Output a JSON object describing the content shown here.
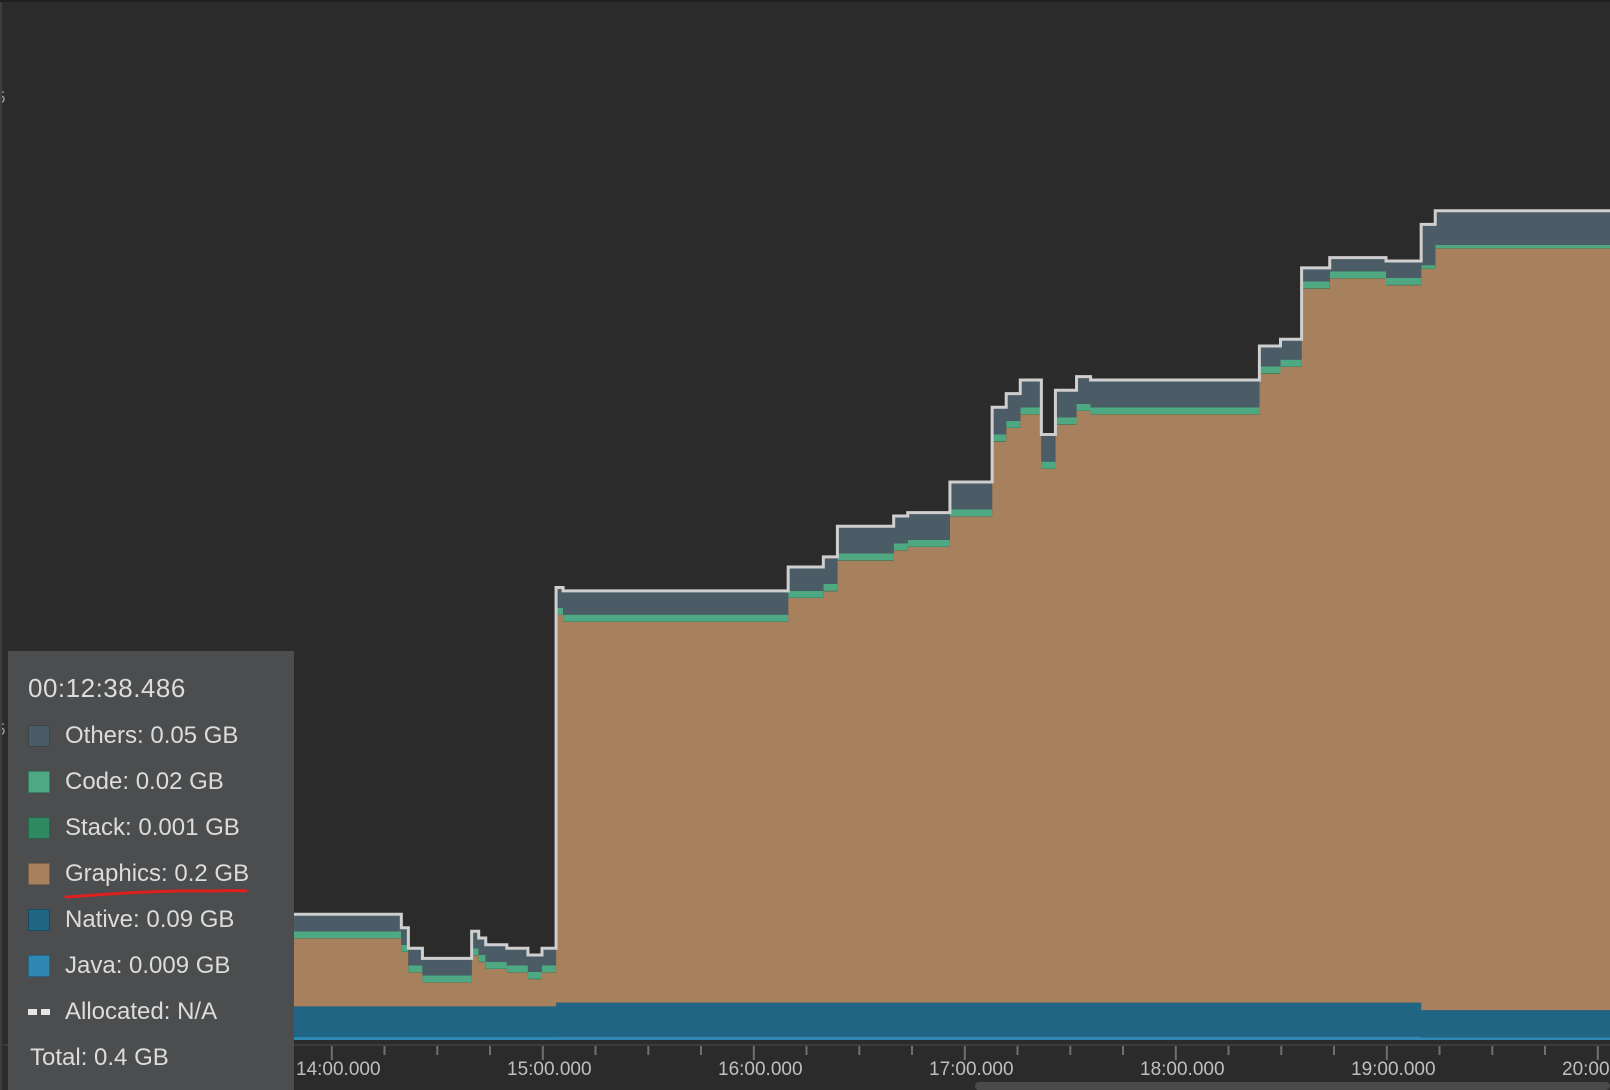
{
  "colors": {
    "background": "#2b2b2b",
    "others": "#4c5c66",
    "code": "#4ea882",
    "stack": "#2f8a62",
    "graphics": "#a7815d",
    "native": "#216584",
    "java": "#2f87b3",
    "total_line": "#cfcfcf",
    "annotation": "#e02020"
  },
  "tooltip": {
    "time": "00:12:38.486",
    "items": [
      {
        "label": "Others: 0.05 GB",
        "swatch": "others"
      },
      {
        "label": "Code: 0.02 GB",
        "swatch": "code"
      },
      {
        "label": "Stack: 0.001 GB",
        "swatch": "stack"
      },
      {
        "label": "Graphics: 0.2 GB",
        "swatch": "graphics"
      },
      {
        "label": "Native: 0.09 GB",
        "swatch": "native"
      },
      {
        "label": "Java: 0.009 GB",
        "swatch": "java"
      },
      {
        "label": "Allocated: N/A",
        "swatch": "dashed"
      }
    ],
    "total": "Total: 0.4 GB"
  },
  "chart_data": {
    "type": "area",
    "stacked": true,
    "x_tick_labels": [
      "14:00.000",
      "15:00.000",
      "16:00.000",
      "17:00.000",
      "18:00.000",
      "19:00.000",
      "20:00"
    ],
    "y_tick_labels": [
      "5",
      "5"
    ],
    "grid": false,
    "legend_placement": "bottom-left (hover tooltip)",
    "x": [
      "13:12",
      "13:20",
      "13:30",
      "13:40",
      "14:00",
      "14:20",
      "14:22",
      "14:26",
      "14:36",
      "14:40",
      "14:42",
      "14:44",
      "14:50",
      "14:56",
      "15:00",
      "15:04",
      "15:06",
      "15:10",
      "15:20",
      "15:40",
      "16:04",
      "16:10",
      "16:20",
      "16:24",
      "16:40",
      "16:44",
      "16:56",
      "17:08",
      "17:12",
      "17:16",
      "17:22",
      "17:26",
      "17:32",
      "17:36",
      "17:48",
      "18:00",
      "18:24",
      "18:30",
      "18:36",
      "18:44",
      "19:00",
      "19:10",
      "19:14",
      "19:30",
      "20:00"
    ],
    "series": [
      {
        "name": "Java",
        "values": [
          0.009,
          0.009,
          0.009,
          0.009,
          0.009,
          0.009,
          0.009,
          0.009,
          0.009,
          0.009,
          0.009,
          0.009,
          0.009,
          0.009,
          0.009,
          0.01,
          0.01,
          0.01,
          0.01,
          0.01,
          0.01,
          0.01,
          0.01,
          0.01,
          0.01,
          0.01,
          0.01,
          0.01,
          0.01,
          0.01,
          0.01,
          0.01,
          0.01,
          0.01,
          0.01,
          0.01,
          0.01,
          0.01,
          0.01,
          0.01,
          0.01,
          0.008,
          0.008,
          0.008,
          0.008
        ]
      },
      {
        "name": "Native",
        "values": [
          0.09,
          0.09,
          0.09,
          0.09,
          0.09,
          0.09,
          0.09,
          0.09,
          0.09,
          0.09,
          0.09,
          0.09,
          0.09,
          0.09,
          0.09,
          0.1,
          0.1,
          0.1,
          0.1,
          0.1,
          0.1,
          0.1,
          0.1,
          0.1,
          0.1,
          0.1,
          0.1,
          0.1,
          0.1,
          0.1,
          0.1,
          0.1,
          0.1,
          0.1,
          0.1,
          0.1,
          0.1,
          0.1,
          0.1,
          0.1,
          0.1,
          0.08,
          0.08,
          0.08,
          0.08
        ]
      },
      {
        "name": "Graphics",
        "values": [
          0.2,
          0.2,
          0.2,
          0.2,
          0.2,
          0.16,
          0.1,
          0.07,
          0.07,
          0.15,
          0.13,
          0.11,
          0.1,
          0.08,
          0.1,
          1.14,
          1.12,
          1.12,
          1.12,
          1.12,
          1.12,
          1.19,
          1.21,
          1.3,
          1.33,
          1.34,
          1.43,
          1.65,
          1.69,
          1.73,
          1.57,
          1.7,
          1.74,
          1.73,
          1.73,
          1.73,
          1.85,
          1.87,
          2.1,
          2.13,
          2.11,
          2.18,
          2.24,
          2.24,
          2.24
        ]
      },
      {
        "name": "Stack",
        "values": [
          0.001,
          0.001,
          0.001,
          0.001,
          0.001,
          0.001,
          0.001,
          0.001,
          0.001,
          0.001,
          0.001,
          0.001,
          0.001,
          0.001,
          0.001,
          0.001,
          0.001,
          0.001,
          0.001,
          0.001,
          0.001,
          0.001,
          0.001,
          0.001,
          0.001,
          0.001,
          0.001,
          0.001,
          0.001,
          0.001,
          0.001,
          0.001,
          0.001,
          0.001,
          0.001,
          0.001,
          0.001,
          0.001,
          0.001,
          0.001,
          0.001,
          0.001,
          0.001,
          0.001,
          0.001
        ]
      },
      {
        "name": "Code",
        "values": [
          0.02,
          0.02,
          0.02,
          0.02,
          0.02,
          0.02,
          0.02,
          0.02,
          0.02,
          0.02,
          0.02,
          0.02,
          0.02,
          0.02,
          0.02,
          0.02,
          0.02,
          0.02,
          0.02,
          0.02,
          0.02,
          0.02,
          0.02,
          0.02,
          0.02,
          0.02,
          0.02,
          0.02,
          0.02,
          0.02,
          0.02,
          0.02,
          0.02,
          0.02,
          0.02,
          0.02,
          0.02,
          0.02,
          0.02,
          0.02,
          0.02,
          0.01,
          0.01,
          0.01,
          0.01
        ]
      },
      {
        "name": "Others",
        "values": [
          0.05,
          0.05,
          0.05,
          0.05,
          0.05,
          0.05,
          0.05,
          0.05,
          0.05,
          0.05,
          0.05,
          0.05,
          0.05,
          0.05,
          0.05,
          0.06,
          0.07,
          0.07,
          0.07,
          0.07,
          0.07,
          0.07,
          0.08,
          0.08,
          0.08,
          0.08,
          0.08,
          0.08,
          0.08,
          0.08,
          0.08,
          0.08,
          0.08,
          0.08,
          0.08,
          0.08,
          0.06,
          0.06,
          0.04,
          0.04,
          0.05,
          0.12,
          0.1,
          0.1,
          0.1
        ]
      }
    ],
    "total_line": "Total"
  }
}
